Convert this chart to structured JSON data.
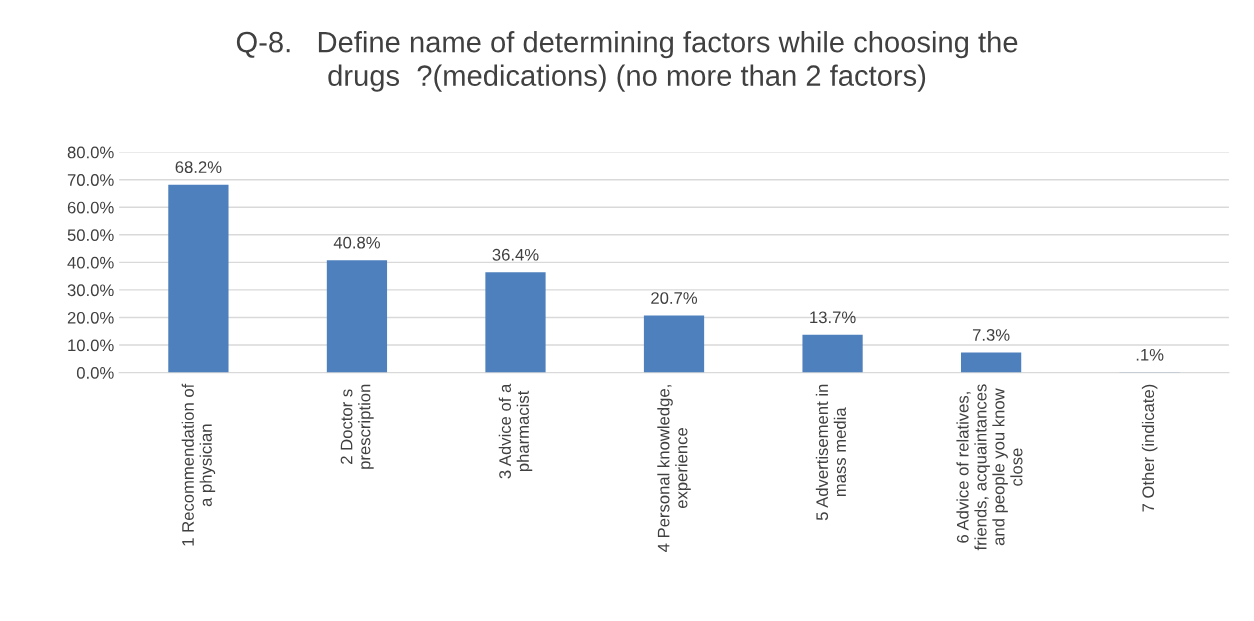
{
  "chart_data": {
    "type": "bar",
    "title": "Q-8.   Define name of determining factors while choosing the\ndrugs  ?(medications) (no more than 2 factors)",
    "categories": [
      "1 Recommendation of\na physician",
      "2 Doctor s\nprescription",
      "3 Advice of a\npharmacist",
      "4 Personal knowledge,\nexperience",
      "5 Advertisement in\nmass media",
      "6 Advice of relatives,\nfriends, acquaintances\nand people you know\nclose",
      "7 Other (indicate)"
    ],
    "values": [
      68.2,
      40.8,
      36.4,
      20.7,
      13.7,
      7.3,
      0.1
    ],
    "value_labels": [
      "68.2%",
      "40.8%",
      "36.4%",
      "20.7%",
      "13.7%",
      "7.3%",
      ".1%"
    ],
    "color": "#4e80bd",
    "ylim": [
      0,
      80
    ],
    "yticks": [
      {
        "value": 0,
        "label": "0.0%"
      },
      {
        "value": 10,
        "label": "10.0%"
      },
      {
        "value": 20,
        "label": "20.0%"
      },
      {
        "value": 30,
        "label": "30.0%"
      },
      {
        "value": 40,
        "label": "40.0%"
      },
      {
        "value": 50,
        "label": "50.0%"
      },
      {
        "value": 60,
        "label": "60.0%"
      },
      {
        "value": 70,
        "label": "70.0%"
      },
      {
        "value": 80,
        "label": "80.0%"
      }
    ],
    "grid": "y",
    "legend": false
  }
}
